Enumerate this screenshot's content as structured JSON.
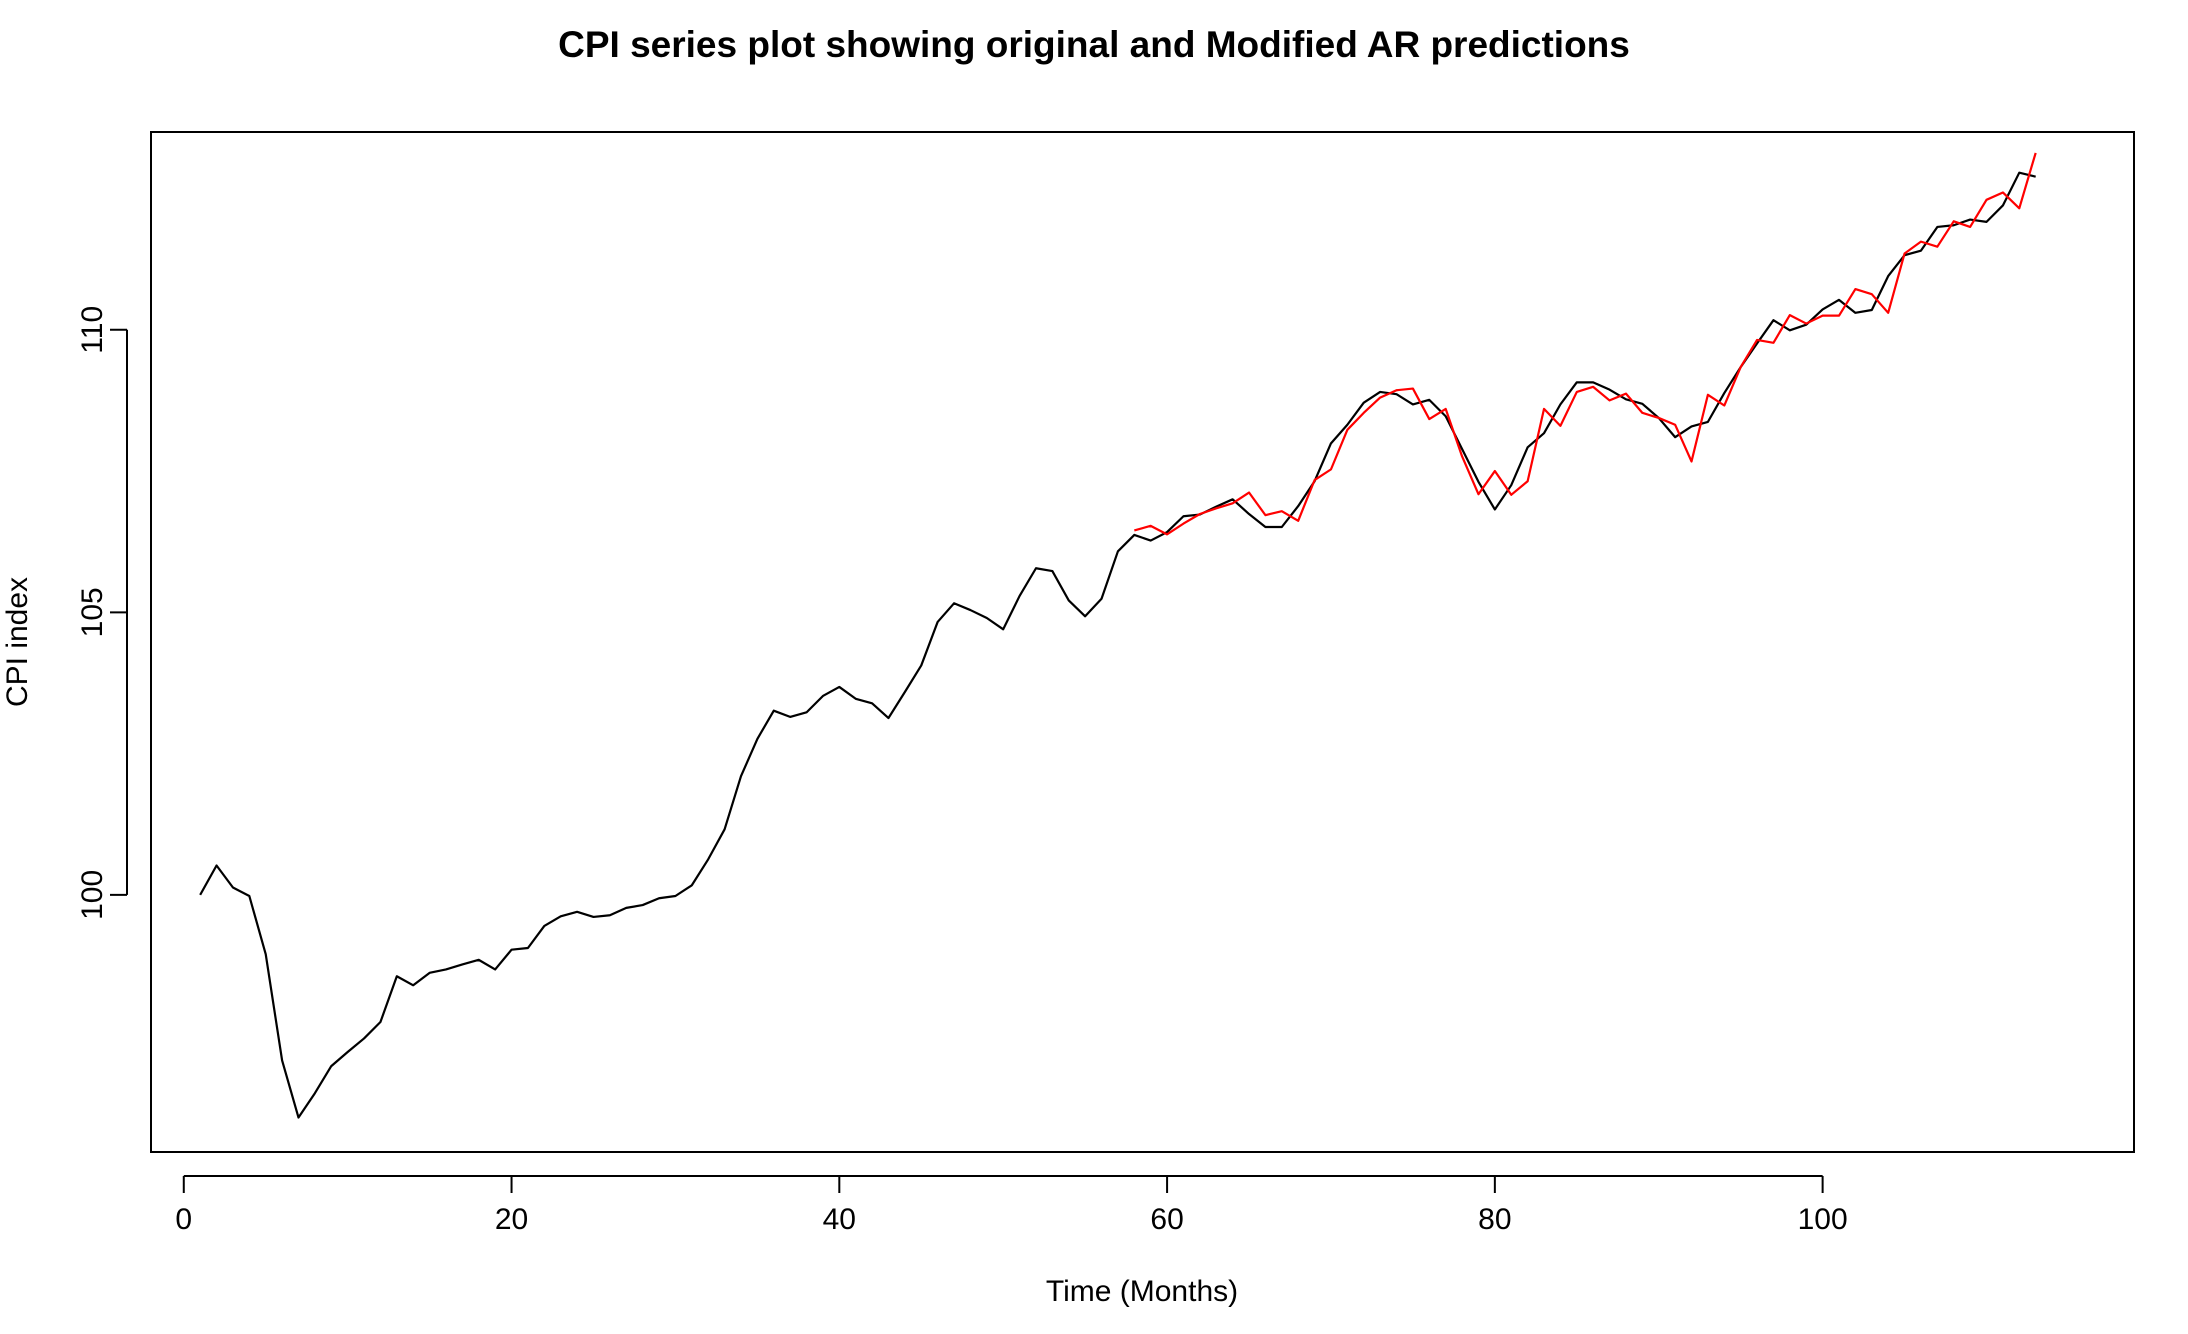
{
  "chart_data": {
    "type": "line",
    "title": "CPI series plot showing original and Modified AR predictions",
    "xlabel": "Time (Months)",
    "ylabel": "CPI index",
    "xlim": [
      -2,
      119
    ],
    "ylim": [
      95.45,
      113.5
    ],
    "x_ticks": [
      0,
      20,
      40,
      60,
      80,
      100
    ],
    "y_ticks": [
      100,
      105,
      110
    ],
    "grid": false,
    "legend": "none",
    "series": [
      {
        "color": "#000000",
        "x_start": 1,
        "values": [
          100.0,
          100.52,
          100.13,
          99.98,
          98.95,
          97.07,
          96.06,
          96.49,
          96.97,
          97.22,
          97.46,
          97.75,
          98.56,
          98.4,
          98.62,
          98.68,
          98.77,
          98.85,
          98.68,
          99.03,
          99.06,
          99.45,
          99.62,
          99.7,
          99.61,
          99.64,
          99.77,
          99.82,
          99.94,
          99.98,
          100.17,
          100.63,
          101.16,
          102.1,
          102.76,
          103.26,
          103.15,
          103.23,
          103.52,
          103.68,
          103.47,
          103.39,
          103.13,
          103.59,
          104.06,
          104.83,
          105.16,
          105.04,
          104.9,
          104.7,
          105.29,
          105.78,
          105.73,
          105.21,
          104.93,
          105.24,
          106.08,
          106.37,
          106.27,
          106.42,
          106.7,
          106.73,
          106.87,
          107.0,
          106.74,
          106.51,
          106.51,
          106.88,
          107.32,
          107.99,
          108.32,
          108.71,
          108.9,
          108.86,
          108.68,
          108.76,
          108.47,
          107.89,
          107.31,
          106.82,
          107.25,
          107.92,
          108.17,
          108.68,
          109.07,
          109.07,
          108.94,
          108.77,
          108.69,
          108.44,
          108.1,
          108.29,
          108.37,
          108.88,
          109.34,
          109.76,
          110.17,
          109.99,
          110.09,
          110.36,
          110.53,
          110.3,
          110.35,
          110.95,
          111.32,
          111.4,
          111.82,
          111.85,
          111.95,
          111.91,
          112.2,
          112.78,
          112.71
        ]
      },
      {
        "color": "#ff0000",
        "x_start": 58,
        "values": [
          106.45,
          106.53,
          106.38,
          106.57,
          106.74,
          106.84,
          106.93,
          107.12,
          106.72,
          106.79,
          106.62,
          107.34,
          107.53,
          108.23,
          108.53,
          108.8,
          108.93,
          108.96,
          108.42,
          108.6,
          107.76,
          107.09,
          107.5,
          107.08,
          107.32,
          108.6,
          108.3,
          108.9,
          108.99,
          108.75,
          108.87,
          108.53,
          108.44,
          108.32,
          107.67,
          108.85,
          108.66,
          109.34,
          109.82,
          109.77,
          110.26,
          110.11,
          110.25,
          110.25,
          110.72,
          110.63,
          110.3,
          111.35,
          111.56,
          111.47,
          111.92,
          111.82,
          112.3,
          112.43,
          112.15,
          113.13
        ]
      }
    ]
  }
}
